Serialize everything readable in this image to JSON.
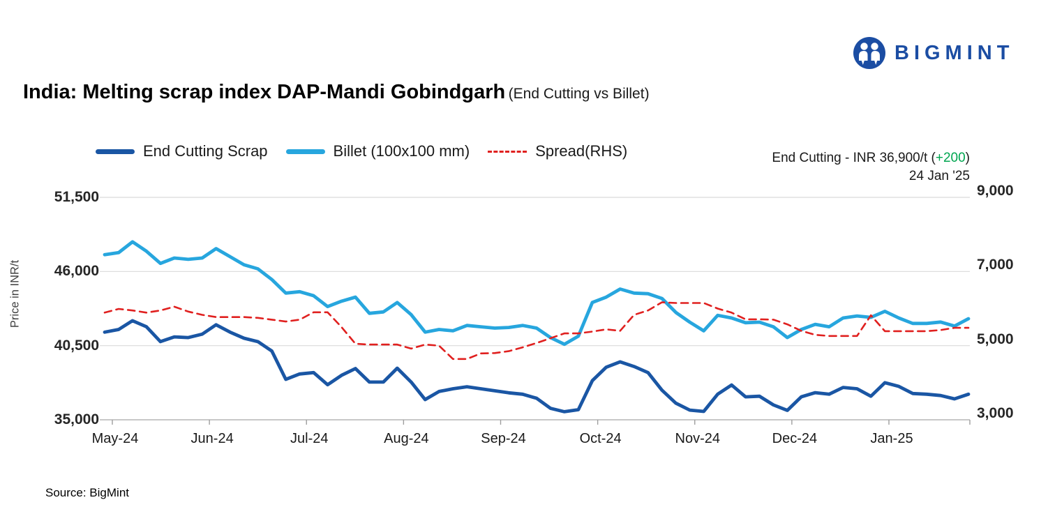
{
  "logo": {
    "text": "BIGMINT",
    "color": "#1b4da3"
  },
  "header": {
    "title": "India: Melting scrap index DAP-Mandi Gobindgarh",
    "subtitle": "(End Cutting vs Billet)"
  },
  "annotation": {
    "prefix": "End Cutting - INR 36,900/t (",
    "change": "+200",
    "suffix": ")",
    "change_color": "#00a550",
    "date": "24 Jan '25"
  },
  "source": "Source: BigMint",
  "chart_data": {
    "type": "line",
    "title": "India: Melting scrap index DAP-Mandi Gobindgarh (End Cutting vs Billet)",
    "x_ticks": [
      "May-24",
      "Jun-24",
      "Jul-24",
      "Aug-24",
      "Sep-24",
      "Oct-24",
      "Nov-24",
      "Dec-24",
      "Jan-25"
    ],
    "y_left": {
      "label": "Price in INR/t",
      "ticks": [
        "51,500",
        "46,000",
        "40,500",
        "35,000"
      ],
      "min": 35000,
      "max": 51500
    },
    "y_right": {
      "ticks": [
        "9,000",
        "7,000",
        "5,000",
        "3,000"
      ],
      "min": 3000,
      "max": 9000
    },
    "grid": "horizontal",
    "legend_position": "top",
    "series": [
      {
        "name": "End Cutting Scrap",
        "axis": "left",
        "style": "solid",
        "color": "#1a56a4",
        "values": [
          41500,
          41700,
          42350,
          41900,
          40800,
          41150,
          41100,
          41350,
          42050,
          41500,
          41050,
          40800,
          40100,
          38000,
          38400,
          38500,
          37600,
          38300,
          38800,
          37800,
          37800,
          38830,
          37800,
          36500,
          37100,
          37300,
          37450,
          37300,
          37150,
          37000,
          36900,
          36600,
          35850,
          35600,
          35750,
          37900,
          38900,
          39300,
          38950,
          38500,
          37200,
          36230,
          35720,
          35620,
          36900,
          37580,
          36700,
          36750,
          36100,
          35700,
          36700,
          37010,
          36900,
          37400,
          37300,
          36750,
          37750,
          37480,
          36950,
          36900,
          36800,
          36550,
          36900
        ]
      },
      {
        "name": "Billet (100x100 mm)",
        "axis": "left",
        "style": "solid",
        "color": "#27a6de",
        "values": [
          47250,
          47400,
          48200,
          47500,
          46600,
          47000,
          46900,
          47000,
          47700,
          47100,
          46500,
          46200,
          45400,
          44400,
          44500,
          44200,
          43400,
          43800,
          44100,
          42900,
          43000,
          43700,
          42800,
          41500,
          41700,
          41600,
          42000,
          41900,
          41800,
          41850,
          42000,
          41800,
          41100,
          40600,
          41200,
          43700,
          44100,
          44700,
          44400,
          44350,
          44000,
          42960,
          42240,
          41600,
          42750,
          42550,
          42200,
          42240,
          41900,
          41100,
          41700,
          42080,
          41900,
          42550,
          42700,
          42600,
          43050,
          42550,
          42150,
          42150,
          42250,
          41950,
          42500
        ]
      },
      {
        "name": "Spread(RHS)",
        "axis": "right",
        "style": "dashed",
        "color": "#e0201f",
        "values": [
          5890,
          5990,
          5950,
          5890,
          5950,
          6050,
          5920,
          5830,
          5770,
          5770,
          5770,
          5750,
          5700,
          5650,
          5700,
          5900,
          5900,
          5500,
          5050,
          5030,
          5030,
          5030,
          4920,
          5030,
          5000,
          4640,
          4640,
          4790,
          4800,
          4850,
          4955,
          5070,
          5200,
          5330,
          5330,
          5380,
          5440,
          5400,
          5830,
          5950,
          6170,
          6150,
          6150,
          6150,
          6000,
          5890,
          5710,
          5710,
          5700,
          5575,
          5400,
          5290,
          5260,
          5260,
          5260,
          5820,
          5390,
          5390,
          5390,
          5390,
          5420,
          5480,
          5480
        ]
      }
    ]
  }
}
